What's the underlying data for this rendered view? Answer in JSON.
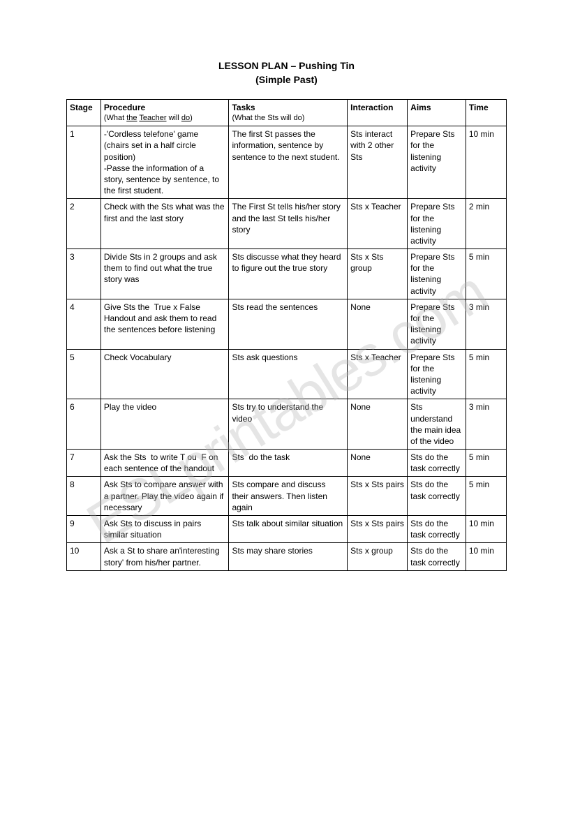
{
  "document": {
    "title_line1": "LESSON PLAN   –  Pushing Tin",
    "title_line2": "(Simple Past)",
    "watermark": "ESLprintables.com"
  },
  "table": {
    "headers": {
      "stage": "Stage",
      "procedure": "Procedure",
      "procedure_sub": "(What the Teacher will do)",
      "tasks": "Tasks",
      "tasks_sub": "(What the Sts will do)",
      "interaction": "Interaction",
      "aims": "Aims",
      "time": "Time"
    },
    "rows": [
      {
        "stage": "1",
        "procedure": "-'Cordless telefone' game\n(chairs set in a half circle position)\n-Passe the information of a story, sentence by sentence, to the first student.",
        "tasks": "The first St passes the information, sentence by sentence to the next student.",
        "interaction": "Sts interact with 2 other Sts",
        "aims": "Prepare Sts for the listening activity",
        "time": "10 min"
      },
      {
        "stage": "2",
        "procedure": "Check with the Sts what was the first and the last story",
        "tasks": "The First St tells his/her story and the last St tells his/her story",
        "interaction": "Sts x Teacher",
        "aims": "Prepare Sts for the listening activity",
        "time": "2 min"
      },
      {
        "stage": "3",
        "procedure": "Divide Sts in 2 groups and ask them to find out what the true story was",
        "tasks": "Sts discusse what they heard to figure out the true story",
        "interaction": "Sts x Sts group",
        "aims": "Prepare Sts for the listening activity",
        "time": "5 min"
      },
      {
        "stage": "4",
        "procedure": "Give Sts the  True x False Handout and ask them to read the sentences before listening",
        "tasks": "Sts read the sentences",
        "interaction": "None",
        "aims": "Prepare Sts for the listening activity",
        "time": "3 min"
      },
      {
        "stage": "5",
        "procedure": "Check Vocabulary",
        "tasks": "Sts ask questions",
        "interaction": "Sts x Teacher",
        "aims": "Prepare Sts for the listening activity",
        "time": "5 min"
      },
      {
        "stage": "6",
        "procedure": "Play the video",
        "tasks": "Sts try to understand the video",
        "interaction": "None",
        "aims": "Sts understand the main idea of the video",
        "time": "3 min"
      },
      {
        "stage": "7",
        "procedure": "Ask the Sts  to write T ou  F on each sentence of the handout",
        "tasks": "Sts  do the task",
        "interaction": "None",
        "aims": "Sts do the task correctly",
        "time": "5 min"
      },
      {
        "stage": "8",
        "procedure": "Ask Sts to compare answer with a partner. Play the video again if necessary",
        "tasks": "Sts compare and discuss their answers. Then listen again",
        "interaction": "Sts x Sts pairs",
        "aims": "Sts do the task correctly",
        "time": "5 min"
      },
      {
        "stage": "9",
        "procedure": "Ask Sts to discuss in pairs similar situation",
        "tasks": "Sts talk about similar situation",
        "interaction": "Sts x Sts pairs",
        "aims": "Sts do the task correctly",
        "time": "10 min"
      },
      {
        "stage": "10",
        "procedure": "Ask a St to share an'interesting story' from his/her partner.",
        "tasks": "Sts may share stories",
        "interaction": "Sts x group",
        "aims": "Sts do the task correctly",
        "time": "10 min"
      }
    ]
  }
}
